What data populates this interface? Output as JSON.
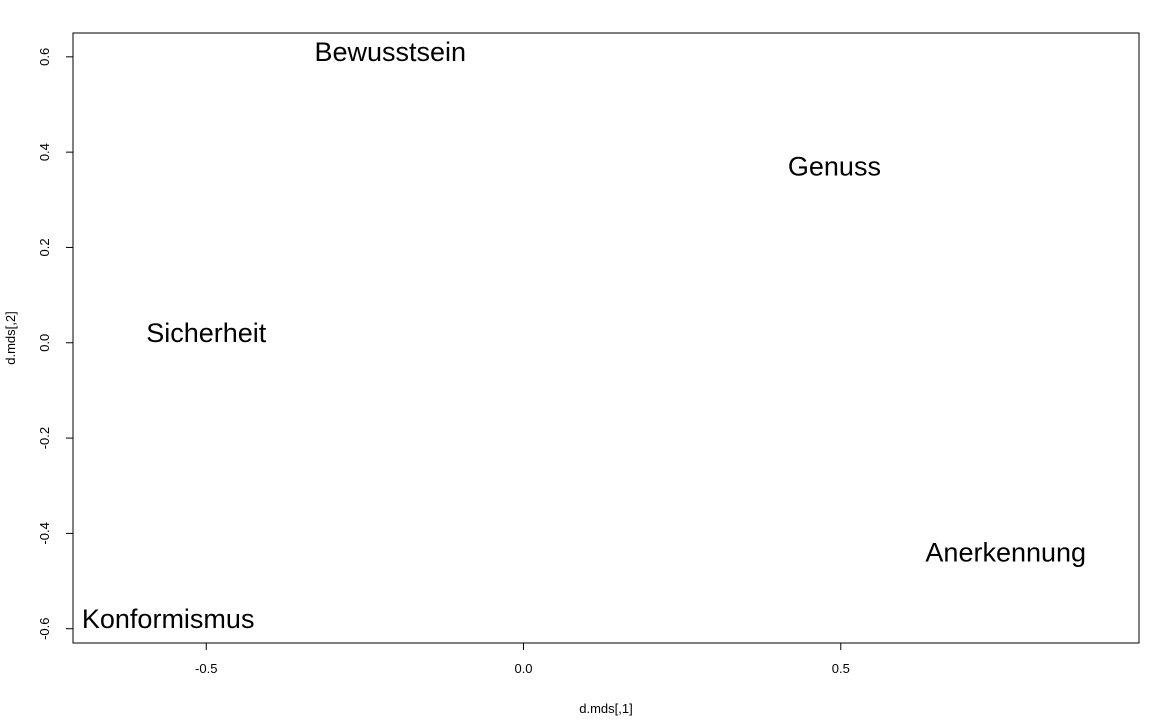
{
  "chart_data": {
    "type": "scatter",
    "xlabel": "d.mds[,1]",
    "ylabel": "d.mds[,2]",
    "xlim": [
      -0.71,
      0.97
    ],
    "ylim": [
      -0.63,
      0.65
    ],
    "x_ticks": [
      -0.5,
      0.0,
      0.5
    ],
    "x_tick_labels": [
      "-0.5",
      "0.0",
      "0.5"
    ],
    "y_ticks": [
      -0.6,
      -0.4,
      -0.2,
      0.0,
      0.2,
      0.4,
      0.6
    ],
    "y_tick_labels": [
      "-0.6",
      "-0.4",
      "-0.2",
      "0.0",
      "0.2",
      "0.4",
      "0.6"
    ],
    "grid": false,
    "legend": "none",
    "points": [
      {
        "label": "Bewusstsein",
        "x": -0.21,
        "y": 0.61
      },
      {
        "label": "Genuss",
        "x": 0.49,
        "y": 0.37
      },
      {
        "label": "Sicherheit",
        "x": -0.5,
        "y": 0.02
      },
      {
        "label": "Anerkennung",
        "x": 0.76,
        "y": -0.44
      },
      {
        "label": "Konformismus",
        "x": -0.56,
        "y": -0.58
      }
    ]
  }
}
